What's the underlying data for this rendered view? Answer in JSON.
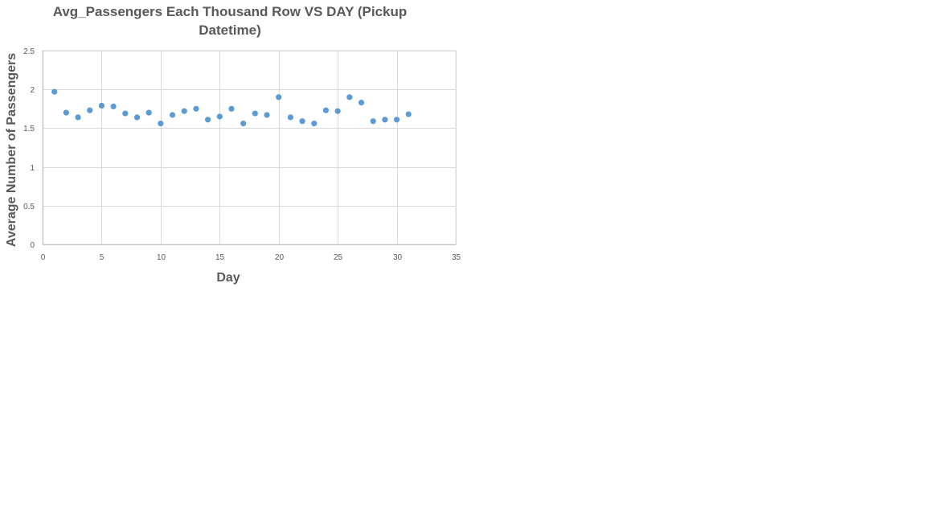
{
  "chart_data": {
    "type": "scatter",
    "title": "Avg_Passengers Each Thousand Row VS DAY (Pickup Datetime)",
    "xlabel": "Day",
    "ylabel": "Average Number of Passengers",
    "xlim": [
      0,
      35
    ],
    "ylim": [
      0,
      2.5
    ],
    "xticks": [
      0,
      5,
      10,
      15,
      20,
      25,
      30,
      35
    ],
    "yticks": [
      0,
      0.5,
      1,
      1.5,
      2,
      2.5
    ],
    "grid": true,
    "legend": "none",
    "marker_color": "#5B9BD5",
    "series": [
      {
        "x": [
          1,
          2,
          3,
          4,
          5,
          6,
          7,
          8,
          9,
          10,
          11,
          12,
          13,
          14,
          15,
          16,
          17,
          18,
          19,
          20,
          21,
          22,
          23,
          24,
          25,
          26,
          27,
          28,
          29,
          30,
          31
        ],
        "y": [
          1.97,
          1.7,
          1.64,
          1.73,
          1.79,
          1.78,
          1.69,
          1.64,
          1.7,
          1.56,
          1.67,
          1.72,
          1.75,
          1.61,
          1.65,
          1.75,
          1.56,
          1.69,
          1.67,
          1.9,
          1.64,
          1.59,
          1.56,
          1.73,
          1.72,
          1.9,
          1.83,
          1.59,
          1.61,
          1.61,
          1.68
        ]
      }
    ]
  }
}
